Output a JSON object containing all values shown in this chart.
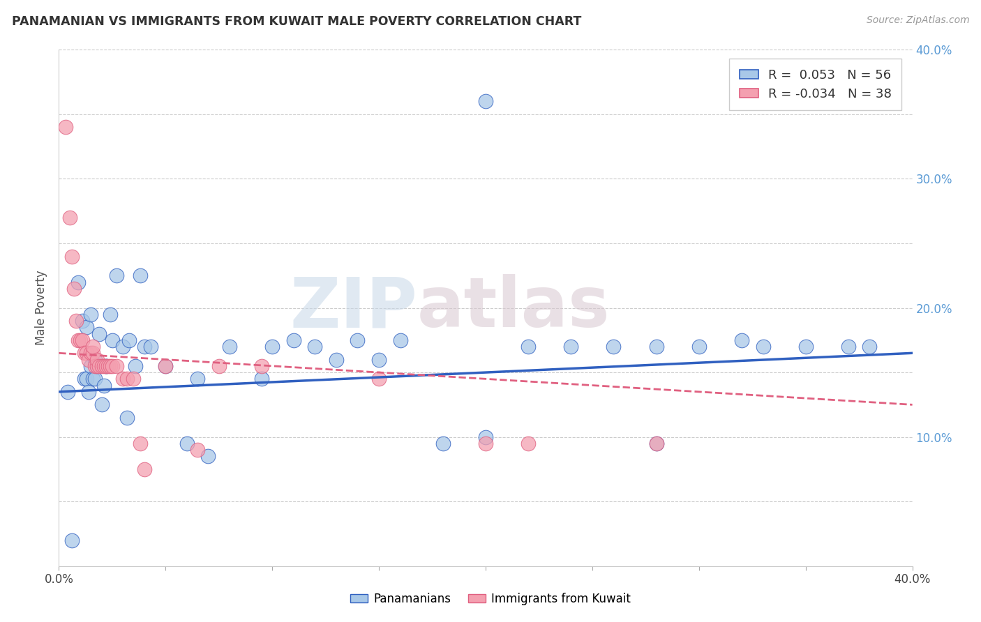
{
  "title": "PANAMANIAN VS IMMIGRANTS FROM KUWAIT MALE POVERTY CORRELATION CHART",
  "source": "Source: ZipAtlas.com",
  "ylabel": "Male Poverty",
  "xlim": [
    0.0,
    0.4
  ],
  "ylim": [
    0.0,
    0.4
  ],
  "xticks": [
    0.0,
    0.05,
    0.1,
    0.15,
    0.2,
    0.25,
    0.3,
    0.35,
    0.4
  ],
  "yticks": [
    0.0,
    0.05,
    0.1,
    0.15,
    0.2,
    0.25,
    0.3,
    0.35,
    0.4
  ],
  "color_blue": "#A8C8E8",
  "color_pink": "#F4A0B0",
  "line_blue": "#3060C0",
  "line_pink": "#E06080",
  "watermark_zip": "ZIP",
  "watermark_atlas": "atlas",
  "legend_r_blue": " 0.053",
  "legend_n_blue": "56",
  "legend_r_pink": "-0.034",
  "legend_n_pink": "38",
  "blue_x": [
    0.004,
    0.006,
    0.009,
    0.011,
    0.012,
    0.013,
    0.013,
    0.014,
    0.015,
    0.015,
    0.016,
    0.017,
    0.017,
    0.018,
    0.019,
    0.02,
    0.021,
    0.022,
    0.022,
    0.024,
    0.025,
    0.027,
    0.03,
    0.032,
    0.033,
    0.036,
    0.038,
    0.04,
    0.043,
    0.05,
    0.06,
    0.065,
    0.07,
    0.08,
    0.095,
    0.1,
    0.11,
    0.12,
    0.13,
    0.14,
    0.15,
    0.16,
    0.18,
    0.2,
    0.22,
    0.24,
    0.26,
    0.28,
    0.3,
    0.33,
    0.35,
    0.37,
    0.38,
    0.2,
    0.28,
    0.32
  ],
  "blue_y": [
    0.135,
    0.02,
    0.22,
    0.19,
    0.145,
    0.145,
    0.185,
    0.135,
    0.155,
    0.195,
    0.145,
    0.16,
    0.145,
    0.155,
    0.18,
    0.125,
    0.14,
    0.155,
    0.155,
    0.195,
    0.175,
    0.225,
    0.17,
    0.115,
    0.175,
    0.155,
    0.225,
    0.17,
    0.17,
    0.155,
    0.095,
    0.145,
    0.085,
    0.17,
    0.145,
    0.17,
    0.175,
    0.17,
    0.16,
    0.175,
    0.16,
    0.175,
    0.095,
    0.1,
    0.17,
    0.17,
    0.17,
    0.17,
    0.17,
    0.17,
    0.17,
    0.17,
    0.17,
    0.36,
    0.095,
    0.175
  ],
  "pink_x": [
    0.003,
    0.005,
    0.006,
    0.007,
    0.008,
    0.009,
    0.01,
    0.011,
    0.012,
    0.013,
    0.014,
    0.015,
    0.016,
    0.016,
    0.017,
    0.018,
    0.018,
    0.019,
    0.02,
    0.021,
    0.022,
    0.023,
    0.024,
    0.025,
    0.027,
    0.03,
    0.032,
    0.035,
    0.038,
    0.04,
    0.05,
    0.065,
    0.075,
    0.095,
    0.15,
    0.2,
    0.22,
    0.28
  ],
  "pink_y": [
    0.34,
    0.27,
    0.24,
    0.215,
    0.19,
    0.175,
    0.175,
    0.175,
    0.165,
    0.165,
    0.16,
    0.165,
    0.165,
    0.17,
    0.155,
    0.155,
    0.16,
    0.155,
    0.155,
    0.155,
    0.155,
    0.155,
    0.155,
    0.155,
    0.155,
    0.145,
    0.145,
    0.145,
    0.095,
    0.075,
    0.155,
    0.09,
    0.155,
    0.155,
    0.145,
    0.095,
    0.095,
    0.095
  ],
  "blue_line_start_y": 0.135,
  "blue_line_end_y": 0.165,
  "pink_line_start_y": 0.165,
  "pink_line_end_y": 0.125
}
